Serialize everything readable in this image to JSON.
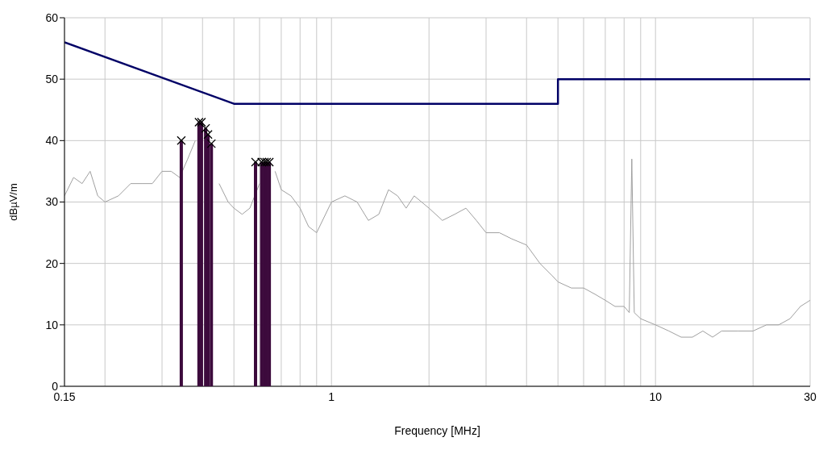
{
  "chart_data": {
    "type": "line",
    "xlabel": "Frequency [MHz]",
    "ylabel": "dBµV/m",
    "log": "x",
    "grid": true,
    "xlim": [
      0.15,
      30
    ],
    "xticks": [
      0.15,
      {
        "value": 0.2,
        "label": null
      },
      {
        "value": 0.3,
        "label": null
      },
      {
        "value": 0.4,
        "label": null
      },
      {
        "value": 0.5,
        "label": null
      },
      {
        "value": 0.6,
        "label": null
      },
      {
        "value": 0.7,
        "label": null
      },
      {
        "value": 0.8,
        "label": null
      },
      {
        "value": 0.9,
        "label": null
      },
      1,
      {
        "value": 2,
        "label": null
      },
      {
        "value": 3,
        "label": null
      },
      {
        "value": 4,
        "label": null
      },
      {
        "value": 5,
        "label": null
      },
      {
        "value": 6,
        "label": null
      },
      {
        "value": 7,
        "label": null
      },
      {
        "value": 8,
        "label": null
      },
      {
        "value": 9,
        "label": null
      },
      10,
      {
        "value": 20,
        "label": null
      },
      30
    ],
    "ylim": [
      0,
      60
    ],
    "yticks": [
      0,
      10,
      20,
      30,
      40,
      50,
      60
    ],
    "series": [
      {
        "color": "#a0a0a0",
        "marker": "none",
        "x": [
          0.15,
          0.16,
          0.17,
          0.18,
          0.19,
          0.2,
          0.22,
          0.24,
          0.26,
          0.28,
          0.3,
          0.32,
          0.34,
          0.36,
          0.38,
          0.4,
          0.42,
          0.45,
          0.48,
          0.5,
          0.53,
          0.56,
          0.6,
          0.63,
          0.67,
          0.7,
          0.75,
          0.8,
          0.85,
          0.9,
          1,
          1.1,
          1.2,
          1.3,
          1.4,
          1.5,
          1.6,
          1.7,
          1.8,
          2,
          2.2,
          2.4,
          2.6,
          2.8,
          3,
          3.3,
          3.6,
          4,
          4.4,
          4.8,
          5,
          5.5,
          6,
          6.5,
          7,
          7.5,
          8,
          8.3,
          8.45,
          8.6,
          9,
          10,
          11,
          12,
          13,
          14,
          15,
          16,
          18,
          20,
          22,
          24,
          26,
          28,
          30
        ],
        "values": [
          31,
          34,
          33,
          35,
          31,
          30,
          31,
          33,
          33,
          33,
          35,
          35,
          34,
          37,
          40,
          null,
          null,
          33,
          30,
          29,
          28,
          29,
          33,
          null,
          35,
          32,
          31,
          29,
          26,
          25,
          30,
          31,
          30,
          27,
          28,
          32,
          31,
          29,
          31,
          29,
          27,
          28,
          29,
          27,
          25,
          25,
          24,
          23,
          20,
          18,
          17,
          16,
          16,
          15,
          14,
          13,
          13,
          12,
          37,
          12,
          11,
          10,
          9,
          8,
          8,
          9,
          8,
          9,
          9,
          9,
          10,
          10,
          11,
          13,
          14
        ]
      },
      {
        "type": "line",
        "color": "#000066",
        "marker": "none",
        "x": [
          0.15,
          0.5,
          5,
          5,
          30
        ],
        "values": [
          56,
          46,
          46,
          50,
          50
        ]
      },
      {
        "type": "bar",
        "color": "#3c0a3c",
        "x": [
          0.344,
          0.39,
          0.397,
          0.409,
          0.416,
          0.426,
          0.583,
          0.609,
          0.621,
          0.631,
          0.643
        ],
        "values": [
          40,
          43,
          43,
          42,
          41,
          39.5,
          36.5,
          36.5,
          36.5,
          36.5,
          36.5
        ]
      },
      {
        "type": "scatter",
        "color": "#000000",
        "marker": "cross",
        "x": [
          0.344,
          0.39,
          0.397,
          0.409,
          0.416,
          0.426,
          0.583,
          0.609,
          0.621,
          0.631,
          0.643
        ],
        "values": [
          40,
          43,
          43,
          42,
          41,
          39.5,
          36.5,
          36.5,
          36.5,
          36.5,
          36.5
        ]
      }
    ]
  }
}
